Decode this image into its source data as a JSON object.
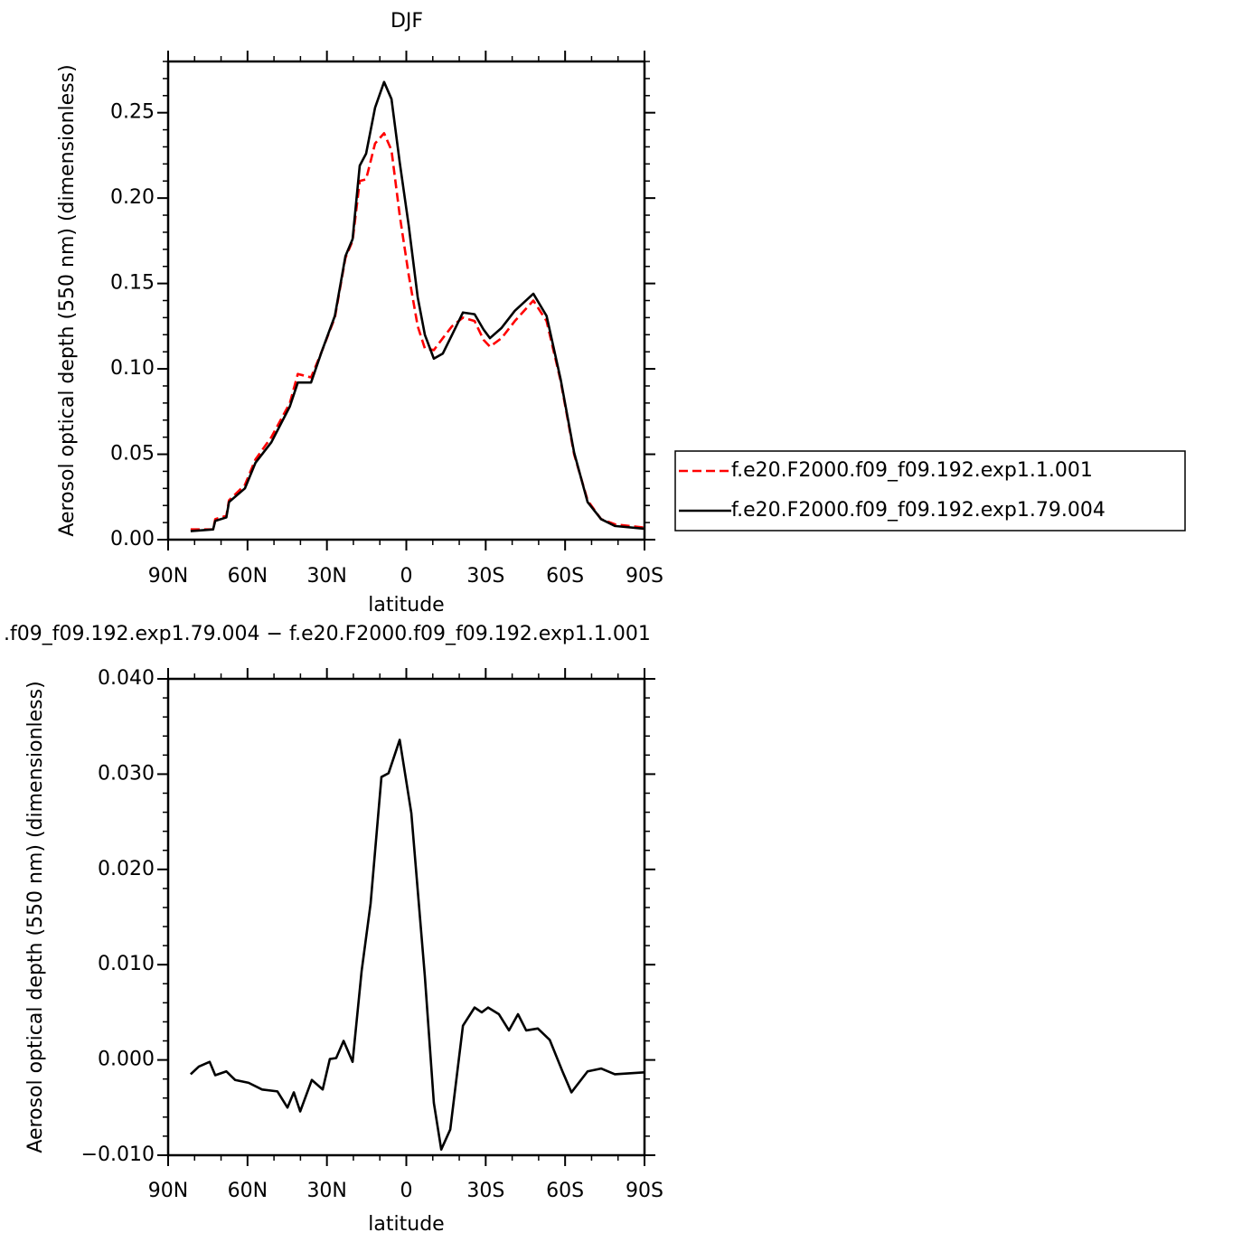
{
  "chart_data": [
    {
      "type": "line",
      "title": "DJF",
      "xlabel": "latitude",
      "ylabel": "Aerosol optical depth (550 nm) (dimensionless)",
      "xlim": [
        90,
        -90
      ],
      "xticks": [
        {
          "value": 90,
          "label": "90N"
        },
        {
          "value": 60,
          "label": "60N"
        },
        {
          "value": 30,
          "label": "30N"
        },
        0,
        {
          "value": -30,
          "label": "30S"
        },
        {
          "value": -60,
          "label": "60S"
        },
        {
          "value": -90,
          "label": "90S"
        }
      ],
      "ylim": [
        0,
        0.28
      ],
      "yticks": [
        {
          "value": 0,
          "label": "0.00"
        },
        {
          "value": 0.05,
          "label": "0.05"
        },
        {
          "value": 0.1,
          "label": "0.10"
        },
        {
          "value": 0.15,
          "label": "0.15"
        },
        {
          "value": 0.2,
          "label": "0.20"
        },
        {
          "value": 0.25,
          "label": "0.25"
        }
      ],
      "legend": "right",
      "x": [
        81.5,
        73,
        72.2,
        68,
        67,
        61,
        57,
        51,
        44,
        41,
        36,
        32,
        27,
        23,
        20.3,
        17.6,
        15.2,
        11.8,
        8.4,
        5.6,
        2.5,
        -0.9,
        -4.3,
        -7,
        -10.4,
        -13.8,
        -17.3,
        -21.4,
        -25.8,
        -29.2,
        -31.6,
        -36,
        -41,
        -48,
        -53,
        -58.3,
        -63.4,
        -68.5,
        -73.6,
        -78.8,
        -90
      ],
      "series": [
        {
          "name": "f.e20.F2000.f09_f09.192.exp1.1.001",
          "color": "#ff0000",
          "linestyle": "dashed",
          "values": [
            0.006,
            0.006,
            0.012,
            0.014,
            0.023,
            0.032,
            0.047,
            0.06,
            0.08,
            0.097,
            0.095,
            0.11,
            0.13,
            0.165,
            0.175,
            0.21,
            0.211,
            0.232,
            0.238,
            0.228,
            0.19,
            0.155,
            0.125,
            0.112,
            0.111,
            0.118,
            0.125,
            0.13,
            0.128,
            0.117,
            0.113,
            0.118,
            0.128,
            0.14,
            0.128,
            0.093,
            0.05,
            0.023,
            0.012,
            0.009,
            0.007
          ]
        },
        {
          "name": "f.e20.F2000.f09_f09.192.exp1.79.004",
          "color": "#000000",
          "linestyle": "solid",
          "values": [
            0.005,
            0.006,
            0.011,
            0.013,
            0.022,
            0.03,
            0.045,
            0.057,
            0.078,
            0.092,
            0.092,
            0.11,
            0.131,
            0.166,
            0.176,
            0.219,
            0.226,
            0.253,
            0.268,
            0.258,
            0.221,
            0.184,
            0.142,
            0.12,
            0.106,
            0.109,
            0.12,
            0.133,
            0.132,
            0.123,
            0.118,
            0.124,
            0.134,
            0.144,
            0.131,
            0.094,
            0.051,
            0.022,
            0.012,
            0.008,
            0.0064
          ]
        }
      ]
    },
    {
      "type": "line",
      "title": ".f09_f09.192.exp1.79.004 − f.e20.F2000.f09_f09.192.exp1.1.001",
      "xlabel": "latitude",
      "ylabel": "Aerosol optical depth (550 nm) (dimensionless)",
      "xlim": [
        90,
        -90
      ],
      "xticks": [
        {
          "value": 90,
          "label": "90N"
        },
        {
          "value": 60,
          "label": "60N"
        },
        {
          "value": 30,
          "label": "30N"
        },
        0,
        {
          "value": -30,
          "label": "30S"
        },
        {
          "value": -60,
          "label": "60S"
        },
        {
          "value": -90,
          "label": "90S"
        }
      ],
      "ylim": [
        -0.01,
        0.04
      ],
      "yticks": [
        {
          "value": -0.01,
          "label": "−0.010"
        },
        {
          "value": 0,
          "label": "0.000"
        },
        {
          "value": 0.01,
          "label": "0.010"
        },
        {
          "value": 0.02,
          "label": "0.020"
        },
        {
          "value": 0.03,
          "label": "0.030"
        },
        {
          "value": 0.04,
          "label": "0.040"
        }
      ],
      "x": [
        81.5,
        78.4,
        74.3,
        72.2,
        68,
        64.7,
        59.6,
        54.5,
        48.7,
        44.9,
        42.5,
        40.1,
        35.7,
        31.6,
        28.9,
        26.5,
        23.7,
        20.3,
        16.9,
        13.5,
        9.4,
        6.7,
        2.5,
        -1.9,
        -7,
        -10.4,
        -13.2,
        -16.6,
        -21.4,
        -25.8,
        -28.5,
        -30.9,
        -35,
        -38.8,
        -42.2,
        -45.3,
        -49.7,
        -54.2,
        -59,
        -62.4,
        -68.5,
        -73.6,
        -78.8,
        -90
      ],
      "series": [
        {
          "color": "#000000",
          "linestyle": "solid",
          "values": [
            -0.0015,
            -0.0007,
            -0.0002,
            -0.0016,
            -0.0012,
            -0.0021,
            -0.0024,
            -0.0031,
            -0.0033,
            -0.005,
            -0.0034,
            -0.0054,
            -0.0021,
            -0.0031,
            0.0001,
            0.0002,
            0.002,
            -0.0002,
            0.0093,
            0.0164,
            0.0297,
            0.0301,
            0.0336,
            0.0259,
            0.0088,
            -0.0045,
            -0.0094,
            -0.0073,
            0.0036,
            0.0055,
            0.005,
            0.0055,
            0.0048,
            0.0031,
            0.0048,
            0.0031,
            0.0033,
            0.0021,
            -0.0012,
            -0.0034,
            -0.0012,
            -0.0009,
            -0.0015,
            -0.0013
          ]
        }
      ]
    }
  ]
}
